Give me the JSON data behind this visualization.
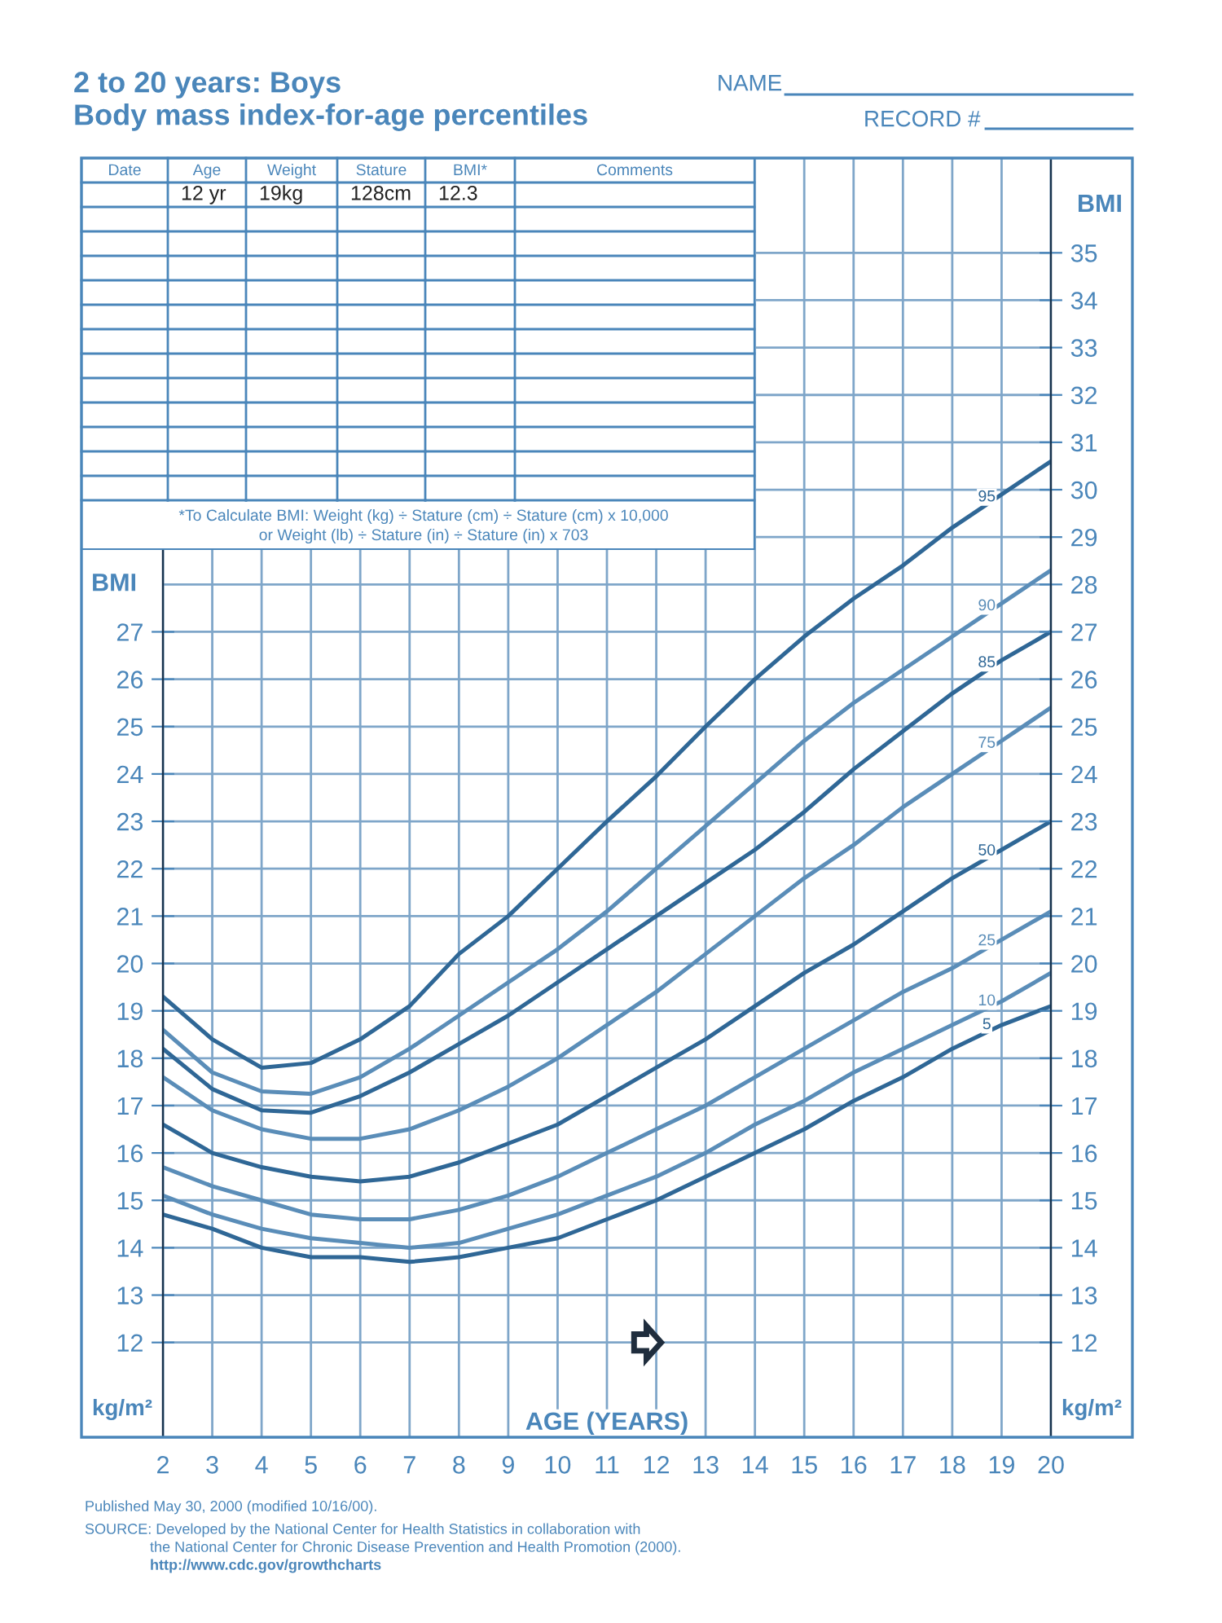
{
  "chart_data": {
    "type": "line",
    "title": "2 to 20 years: Boys",
    "subtitle": "Body mass index-for-age percentiles",
    "xlabel": "AGE (YEARS)",
    "ylabel": "BMI",
    "y2label": "BMI",
    "annotations": [
      "NAME",
      "RECORD #",
      "Date",
      "Age",
      "Weight",
      "Stature",
      "BMI*",
      "Comments",
      "12 yr",
      "19kg",
      "128cm",
      "12.3",
      "*To Calculate BMI: Weight (kg) ÷ Stature (cm) ÷ Stature (cm) x 10,000",
      "or Weight (lb) ÷ Stature (in) ÷ Stature (in) x 703",
      "kg/m²",
      "kg/m²",
      "Published May 30, 2000 (modified 10/16/00).",
      "SOURCE: Developed by the National Center for Health Statistics in collaboration with",
      "the National Center for Chronic Disease Prevention and Health Promotion (2000).",
      "http://www.cdc.gov/growthcharts"
    ],
    "x": [
      2,
      3,
      4,
      5,
      6,
      7,
      8,
      9,
      10,
      11,
      12,
      13,
      14,
      15,
      16,
      17,
      18,
      19,
      20
    ],
    "series": [
      {
        "name": "95",
        "color": "#2f6796",
        "values": [
          19.3,
          18.4,
          17.8,
          17.9,
          18.4,
          19.1,
          20.2,
          21.0,
          22.0,
          23.0,
          23.95,
          25.0,
          26.0,
          26.9,
          27.7,
          28.4,
          29.2,
          29.9,
          30.6
        ]
      },
      {
        "name": "90",
        "color": "#5a8db8",
        "values": [
          18.6,
          17.7,
          17.3,
          17.25,
          17.6,
          18.2,
          18.9,
          19.6,
          20.3,
          21.1,
          22.0,
          22.9,
          23.8,
          24.7,
          25.5,
          26.2,
          26.9,
          27.6,
          28.3
        ]
      },
      {
        "name": "85",
        "color": "#2f6796",
        "values": [
          18.2,
          17.35,
          16.9,
          16.85,
          17.2,
          17.7,
          18.3,
          18.9,
          19.6,
          20.3,
          21.0,
          21.7,
          22.4,
          23.2,
          24.1,
          24.9,
          25.7,
          26.4,
          27.0
        ]
      },
      {
        "name": "75",
        "color": "#5a8db8",
        "values": [
          17.6,
          16.9,
          16.5,
          16.3,
          16.3,
          16.5,
          16.9,
          17.4,
          18.0,
          18.7,
          19.4,
          20.2,
          21.0,
          21.8,
          22.5,
          23.3,
          24.0,
          24.7,
          25.4
        ]
      },
      {
        "name": "50",
        "color": "#2f6796",
        "values": [
          16.6,
          16.0,
          15.7,
          15.5,
          15.4,
          15.5,
          15.8,
          16.2,
          16.6,
          17.2,
          17.8,
          18.4,
          19.1,
          19.8,
          20.4,
          21.1,
          21.8,
          22.4,
          23.0
        ]
      },
      {
        "name": "25",
        "color": "#5a8db8",
        "values": [
          15.7,
          15.3,
          15.0,
          14.7,
          14.6,
          14.6,
          14.8,
          15.1,
          15.5,
          16.0,
          16.5,
          17.0,
          17.6,
          18.2,
          18.8,
          19.4,
          19.9,
          20.5,
          21.1
        ]
      },
      {
        "name": "10",
        "color": "#5a8db8",
        "values": [
          15.1,
          14.7,
          14.4,
          14.2,
          14.1,
          14.0,
          14.1,
          14.4,
          14.7,
          15.1,
          15.5,
          16.0,
          16.6,
          17.1,
          17.7,
          18.2,
          18.7,
          19.2,
          19.8
        ]
      },
      {
        "name": "5",
        "color": "#2f6796",
        "values": [
          14.7,
          14.4,
          14.0,
          13.8,
          13.8,
          13.7,
          13.8,
          14.0,
          14.2,
          14.6,
          15.0,
          15.5,
          16.0,
          16.5,
          17.1,
          17.6,
          18.2,
          18.7,
          19.1
        ]
      }
    ],
    "xlim": [
      2,
      20
    ],
    "xticks": [
      2,
      3,
      4,
      5,
      6,
      7,
      8,
      9,
      10,
      11,
      12,
      13,
      14,
      15,
      16,
      17,
      18,
      19,
      20
    ],
    "ylim": [
      10,
      37
    ],
    "yticks": [
      12,
      13,
      14,
      15,
      16,
      17,
      18,
      19,
      20,
      21,
      22,
      23,
      24,
      25,
      26,
      27
    ],
    "y2lim": [
      10,
      37
    ],
    "y2ticks": [
      12,
      13,
      14,
      15,
      16,
      17,
      18,
      19,
      20,
      21,
      22,
      23,
      24,
      25,
      26,
      27,
      28,
      29,
      30,
      31,
      32,
      33,
      34,
      35
    ],
    "grid": true
  }
}
